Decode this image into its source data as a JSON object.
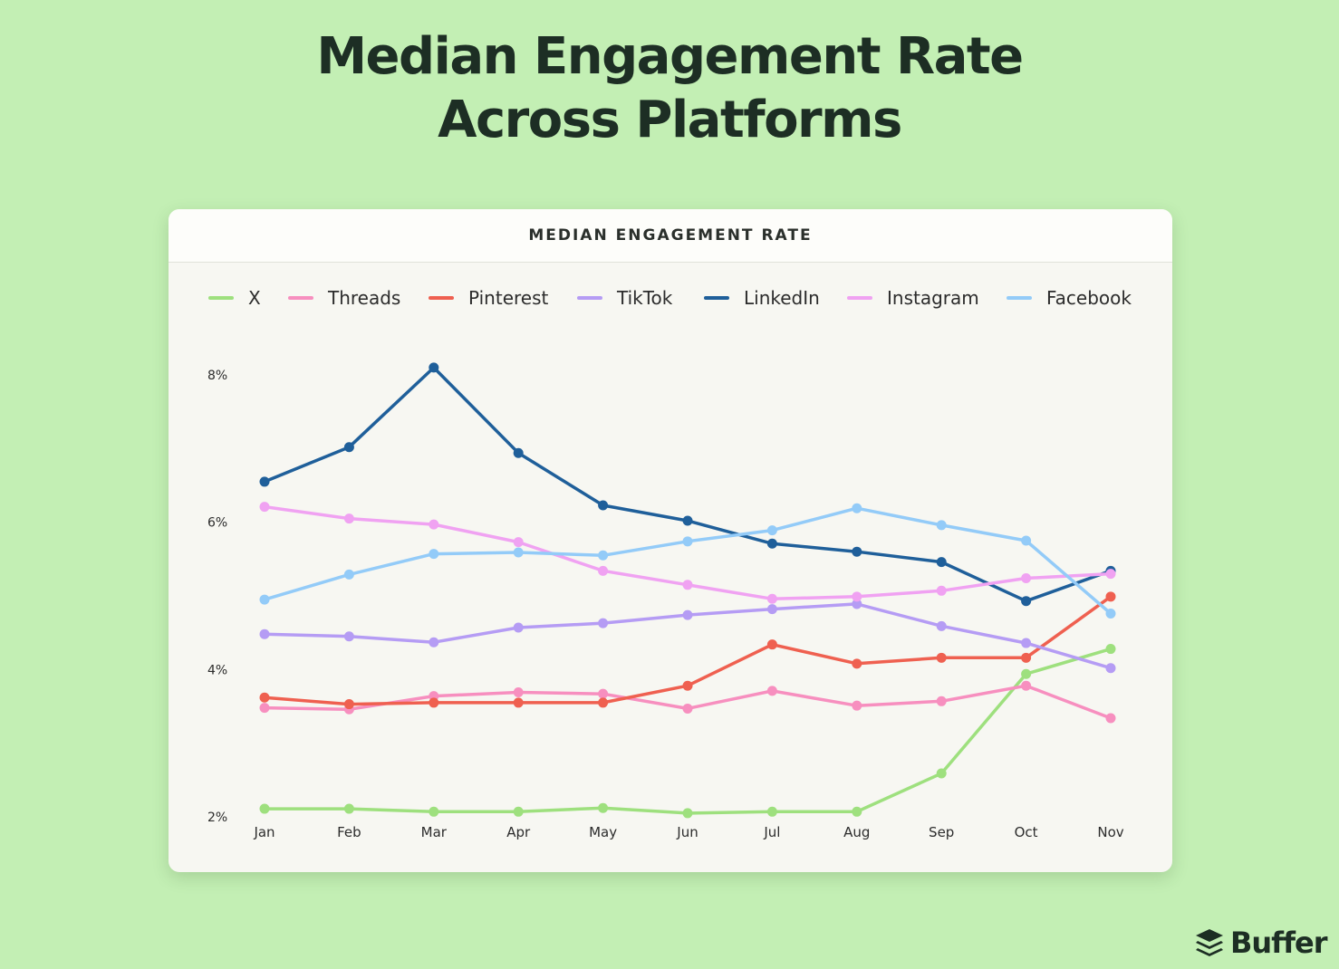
{
  "page": {
    "headline_line1": "Median Engagement Rate",
    "headline_line2": "Across Platforms",
    "card_title": "MEDIAN ENGAGEMENT RATE",
    "brand": "Buffer"
  },
  "colors": {
    "background": "#c3efb4",
    "card": "#f7f7f2",
    "text": "#1d2e24"
  },
  "chart_data": {
    "type": "line",
    "title": "MEDIAN ENGAGEMENT RATE",
    "xlabel": "",
    "ylabel": "",
    "categories": [
      "Jan",
      "Feb",
      "Mar",
      "Apr",
      "May",
      "Jun",
      "Jul",
      "Aug",
      "Sep",
      "Oct",
      "Nov"
    ],
    "y_ticks": [
      2,
      4,
      6,
      8
    ],
    "y_tick_labels": [
      "2%",
      "4%",
      "6%",
      "8%"
    ],
    "ylim": [
      2,
      8
    ],
    "grid": false,
    "legend_position": "top",
    "series": [
      {
        "name": "X",
        "color": "#9ee07e",
        "values": [
          2.11,
          2.11,
          2.07,
          2.07,
          2.12,
          2.05,
          2.07,
          2.07,
          2.59,
          3.94,
          4.28
        ]
      },
      {
        "name": "Threads",
        "color": "#f78fbf",
        "values": [
          3.48,
          3.46,
          3.64,
          3.69,
          3.67,
          3.47,
          3.71,
          3.51,
          3.57,
          3.78,
          3.34
        ]
      },
      {
        "name": "Pinterest",
        "color": "#ef6050",
        "values": [
          3.62,
          3.53,
          3.55,
          3.55,
          3.55,
          3.78,
          4.34,
          4.08,
          4.16,
          4.16,
          4.99
        ]
      },
      {
        "name": "TikTok",
        "color": "#b59cf4",
        "values": [
          4.48,
          4.45,
          4.37,
          4.57,
          4.63,
          4.74,
          4.82,
          4.89,
          4.59,
          4.36,
          4.02
        ]
      },
      {
        "name": "LinkedIn",
        "color": "#1f5f9a",
        "values": [
          6.55,
          7.02,
          8.1,
          6.94,
          6.23,
          6.02,
          5.71,
          5.6,
          5.46,
          4.93,
          5.34
        ]
      },
      {
        "name": "Instagram",
        "color": "#f0a2f2",
        "values": [
          6.21,
          6.05,
          5.97,
          5.73,
          5.34,
          5.15,
          4.96,
          4.99,
          5.07,
          5.24,
          5.3
        ]
      },
      {
        "name": "Facebook",
        "color": "#93cbf8",
        "values": [
          4.95,
          5.29,
          5.57,
          5.59,
          5.55,
          5.74,
          5.89,
          6.19,
          5.96,
          5.75,
          4.76
        ]
      }
    ]
  }
}
